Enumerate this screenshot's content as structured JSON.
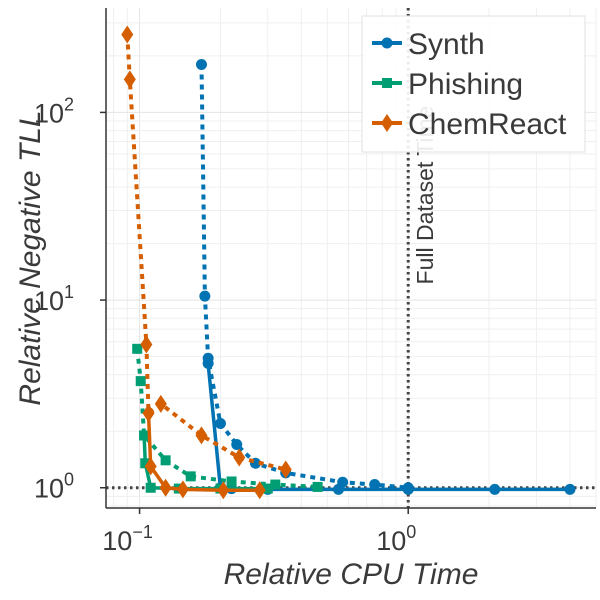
{
  "chart_data": {
    "type": "line",
    "xscale": "log",
    "yscale": "log",
    "xlabel": "Relative CPU Time",
    "ylabel": "Relative Negative TLL",
    "xlim": [
      0.075,
      5.0
    ],
    "ylim": [
      0.78,
      360
    ],
    "x_ticks": [
      {
        "value": 0.1,
        "base": "10",
        "exp": "−1"
      },
      {
        "value": 1,
        "base": "10",
        "exp": "0"
      }
    ],
    "y_ticks": [
      {
        "value": 1,
        "label": "10⁰",
        "base": "10",
        "exp": "0"
      },
      {
        "value": 10,
        "label": "10¹",
        "base": "10",
        "exp": "1"
      },
      {
        "value": 100,
        "label": "10²",
        "base": "10",
        "exp": "2"
      }
    ],
    "grid": true,
    "reference_lines": [
      {
        "orientation": "vertical",
        "value": 1.0,
        "label": "Full Dataset Time",
        "style": "dotted"
      },
      {
        "orientation": "horizontal",
        "value": 1.0,
        "label": "",
        "style": "dotted"
      }
    ],
    "legend_position": "top-right",
    "series": [
      {
        "name": "Synth",
        "color": "#0173b2",
        "marker": "circle",
        "dashed": {
          "x": [
            0.17,
            0.175,
            0.18,
            0.2,
            0.23,
            0.27,
            0.35,
            0.57,
            0.75,
            1.0
          ],
          "y": [
            180,
            10.5,
            4.9,
            2.2,
            1.7,
            1.35,
            1.2,
            1.07,
            1.04,
            1.0
          ]
        },
        "solid": {
          "x": [
            0.18,
            0.2,
            0.22,
            0.3,
            0.55,
            1.0,
            2.1,
            4.0
          ],
          "y": [
            4.6,
            1.0,
            0.99,
            0.98,
            0.98,
            0.98,
            0.98,
            0.98
          ]
        }
      },
      {
        "name": "Phishing",
        "color": "#029e73",
        "marker": "square",
        "dashed": {
          "x": [
            0.098,
            0.101,
            0.104,
            0.125,
            0.155,
            0.22,
            0.32,
            0.46
          ],
          "y": [
            5.5,
            3.7,
            1.9,
            1.4,
            1.15,
            1.08,
            1.04,
            1.01
          ]
        },
        "solid": {
          "x": [
            0.104,
            0.105,
            0.11,
            0.14,
            0.2,
            0.3
          ],
          "y": [
            1.9,
            1.35,
            1.0,
            0.99,
            0.99,
            0.99
          ]
        }
      },
      {
        "name": "ChemReact",
        "color": "#d55e00",
        "marker": "diamond",
        "dashed": {
          "x": [
            0.09,
            0.092,
            0.106,
            0.108,
            0.12,
            0.17,
            0.235,
            0.35
          ],
          "y": [
            260,
            150,
            5.8,
            2.5,
            2.8,
            1.9,
            1.45,
            1.25
          ]
        },
        "solid": {
          "x": [
            0.108,
            0.11,
            0.125,
            0.145,
            0.205,
            0.28
          ],
          "y": [
            2.5,
            1.3,
            1.0,
            0.98,
            0.97,
            0.97
          ]
        }
      }
    ]
  }
}
